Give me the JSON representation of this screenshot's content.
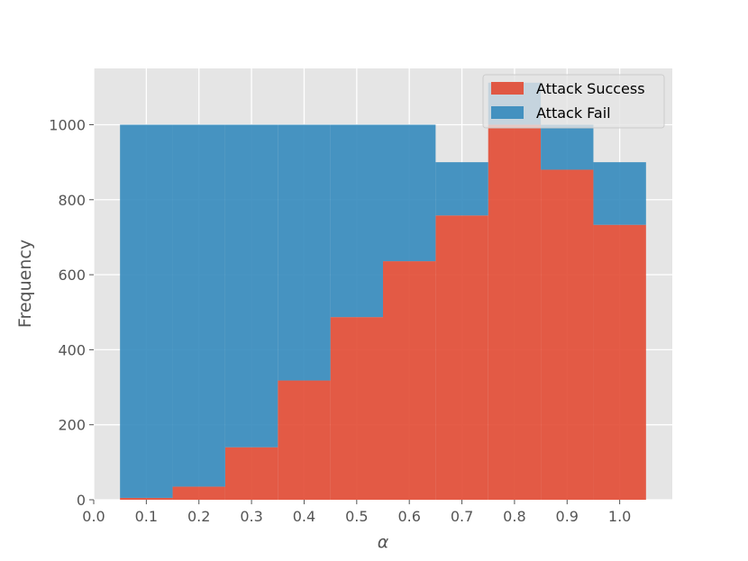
{
  "chart_data": {
    "type": "bar",
    "xlabel": "α",
    "ylabel": "Frequency",
    "xlim": [
      0.0,
      1.1
    ],
    "ylim": [
      0,
      1150
    ],
    "grid": true,
    "legend_position": "top-right",
    "xticks": [
      "0.0",
      "0.1",
      "0.2",
      "0.3",
      "0.4",
      "0.5",
      "0.6",
      "0.7",
      "0.8",
      "0.9",
      "1.0"
    ],
    "yticks": [
      "0",
      "200",
      "400",
      "600",
      "800",
      "1000"
    ],
    "bins": [
      [
        0.05,
        0.15
      ],
      [
        0.15,
        0.25
      ],
      [
        0.25,
        0.35
      ],
      [
        0.35,
        0.45
      ],
      [
        0.45,
        0.55
      ],
      [
        0.55,
        0.65
      ],
      [
        0.65,
        0.75
      ],
      [
        0.75,
        0.85
      ],
      [
        0.85,
        0.95
      ],
      [
        0.95,
        1.05
      ]
    ],
    "series": [
      {
        "name": "Attack Success",
        "color": "#e24a33",
        "values": [
          5,
          35,
          140,
          318,
          487,
          636,
          758,
          1000,
          880,
          733
        ]
      },
      {
        "name": "Attack Fail",
        "color": "#348abd",
        "values": [
          995,
          965,
          860,
          682,
          513,
          364,
          142,
          112,
          120,
          167
        ]
      }
    ]
  }
}
